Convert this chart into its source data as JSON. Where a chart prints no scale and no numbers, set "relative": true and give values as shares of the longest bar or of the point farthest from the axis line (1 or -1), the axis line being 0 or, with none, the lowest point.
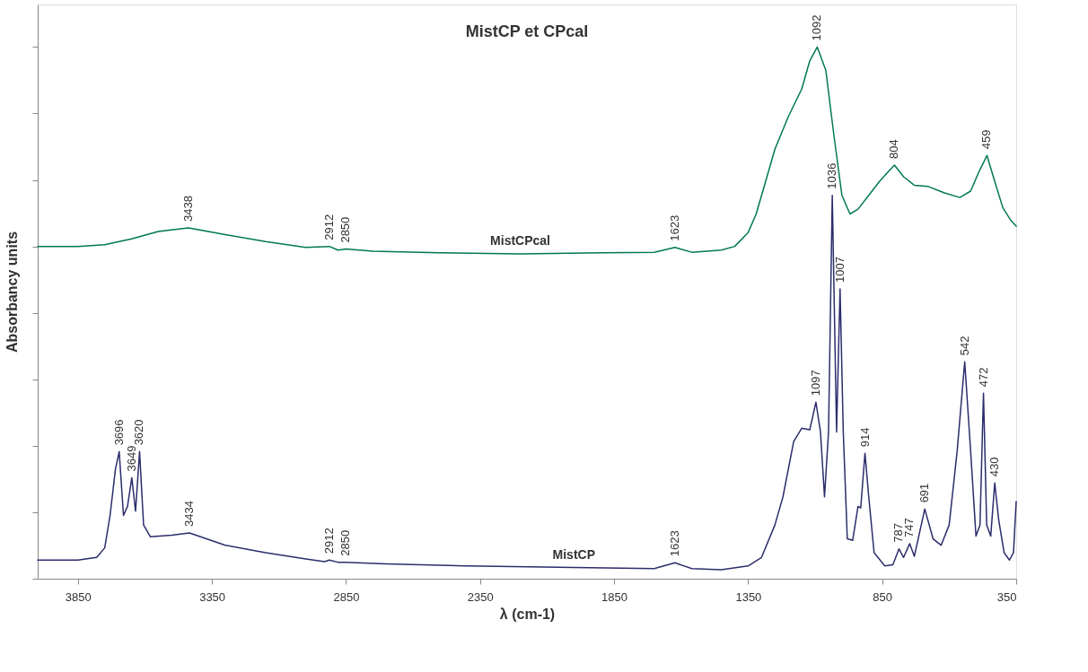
{
  "chart_data": {
    "type": "line",
    "title": "MistCP et CPcal",
    "xlabel": "λ (cm-1)",
    "ylabel": "Absorbancy units",
    "relative": true,
    "xlim": [
      4000,
      350
    ],
    "xticks": [
      3850,
      3350,
      2850,
      2350,
      1850,
      1350,
      850,
      350
    ],
    "grid": false,
    "legend": false,
    "marker": "none",
    "line_style": "solid",
    "series": [
      {
        "name": "MistCPcal",
        "color": "#007a4d",
        "x": [
          4000,
          3850,
          3750,
          3650,
          3550,
          3438,
          3300,
          3150,
          3000,
          2912,
          2880,
          2850,
          2750,
          2500,
          2200,
          1900,
          1700,
          1623,
          1560,
          1450,
          1400,
          1350,
          1320,
          1290,
          1250,
          1200,
          1150,
          1120,
          1092,
          1060,
          1030,
          1000,
          970,
          940,
          900,
          860,
          830,
          804,
          770,
          730,
          680,
          620,
          560,
          520,
          490,
          459,
          430,
          400,
          370,
          350
        ],
        "values": [
          0.625,
          0.625,
          0.628,
          0.639,
          0.653,
          0.66,
          0.647,
          0.634,
          0.623,
          0.625,
          0.618,
          0.62,
          0.616,
          0.613,
          0.611,
          0.613,
          0.614,
          0.623,
          0.614,
          0.618,
          0.625,
          0.651,
          0.686,
          0.738,
          0.808,
          0.869,
          0.921,
          0.974,
          1.0,
          0.956,
          0.834,
          0.721,
          0.686,
          0.695,
          0.721,
          0.747,
          0.764,
          0.778,
          0.756,
          0.74,
          0.738,
          0.726,
          0.717,
          0.729,
          0.764,
          0.796,
          0.747,
          0.698,
          0.674,
          0.663
        ]
      },
      {
        "name": "MistCP",
        "color": "#2b2d6b",
        "x": [
          4000,
          3850,
          3780,
          3750,
          3730,
          3710,
          3696,
          3680,
          3665,
          3649,
          3635,
          3620,
          3605,
          3580,
          3500,
          3434,
          3300,
          3150,
          3000,
          2930,
          2912,
          2880,
          2850,
          2700,
          2400,
          2000,
          1700,
          1623,
          1560,
          1450,
          1350,
          1300,
          1250,
          1220,
          1180,
          1150,
          1120,
          1097,
          1080,
          1065,
          1050,
          1036,
          1020,
          1007,
          995,
          980,
          960,
          940,
          930,
          914,
          900,
          880,
          840,
          810,
          787,
          770,
          747,
          730,
          691,
          660,
          630,
          600,
          570,
          542,
          520,
          500,
          485,
          472,
          460,
          445,
          430,
          415,
          395,
          375,
          360,
          350
        ],
        "values": [
          0.035,
          0.035,
          0.04,
          0.058,
          0.119,
          0.206,
          0.239,
          0.119,
          0.136,
          0.19,
          0.127,
          0.239,
          0.101,
          0.079,
          0.082,
          0.086,
          0.063,
          0.049,
          0.037,
          0.032,
          0.035,
          0.031,
          0.031,
          0.028,
          0.024,
          0.021,
          0.019,
          0.03,
          0.019,
          0.017,
          0.024,
          0.04,
          0.101,
          0.154,
          0.258,
          0.283,
          0.28,
          0.332,
          0.276,
          0.154,
          0.276,
          0.721,
          0.276,
          0.545,
          0.276,
          0.075,
          0.072,
          0.136,
          0.133,
          0.236,
          0.154,
          0.049,
          0.024,
          0.026,
          0.056,
          0.04,
          0.066,
          0.042,
          0.131,
          0.075,
          0.063,
          0.101,
          0.241,
          0.408,
          0.241,
          0.08,
          0.101,
          0.349,
          0.101,
          0.08,
          0.18,
          0.11,
          0.049,
          0.035,
          0.049,
          0.145
        ]
      }
    ],
    "annotations": [
      {
        "text": "1092",
        "x": 1092,
        "y": 1.0
      },
      {
        "text": "804",
        "x": 804,
        "y": 0.778
      },
      {
        "text": "459",
        "x": 459,
        "y": 0.796
      },
      {
        "text": "3438",
        "x": 3438,
        "y": 0.66
      },
      {
        "text": "2912",
        "x": 2912,
        "y": 0.625
      },
      {
        "text": "2850",
        "x": 2850,
        "y": 0.62
      },
      {
        "text": "1623",
        "x": 1623,
        "y": 0.623
      },
      {
        "text": "3696",
        "x": 3696,
        "y": 0.239
      },
      {
        "text": "3649",
        "x": 3649,
        "y": 0.19
      },
      {
        "text": "3620",
        "x": 3620,
        "y": 0.239
      },
      {
        "text": "3434",
        "x": 3434,
        "y": 0.086
      },
      {
        "text": "2912",
        "x": 2912,
        "y": 0.035
      },
      {
        "text": "2850",
        "x": 2850,
        "y": 0.031
      },
      {
        "text": "1623",
        "x": 1623,
        "y": 0.03
      },
      {
        "text": "1097",
        "x": 1097,
        "y": 0.332
      },
      {
        "text": "1036",
        "x": 1036,
        "y": 0.721
      },
      {
        "text": "1007",
        "x": 1007,
        "y": 0.545
      },
      {
        "text": "914",
        "x": 914,
        "y": 0.236
      },
      {
        "text": "787",
        "x": 787,
        "y": 0.056
      },
      {
        "text": "747",
        "x": 747,
        "y": 0.066
      },
      {
        "text": "691",
        "x": 691,
        "y": 0.131
      },
      {
        "text": "542",
        "x": 542,
        "y": 0.408
      },
      {
        "text": "472",
        "x": 472,
        "y": 0.349
      },
      {
        "text": "430",
        "x": 430,
        "y": 0.18
      }
    ]
  }
}
